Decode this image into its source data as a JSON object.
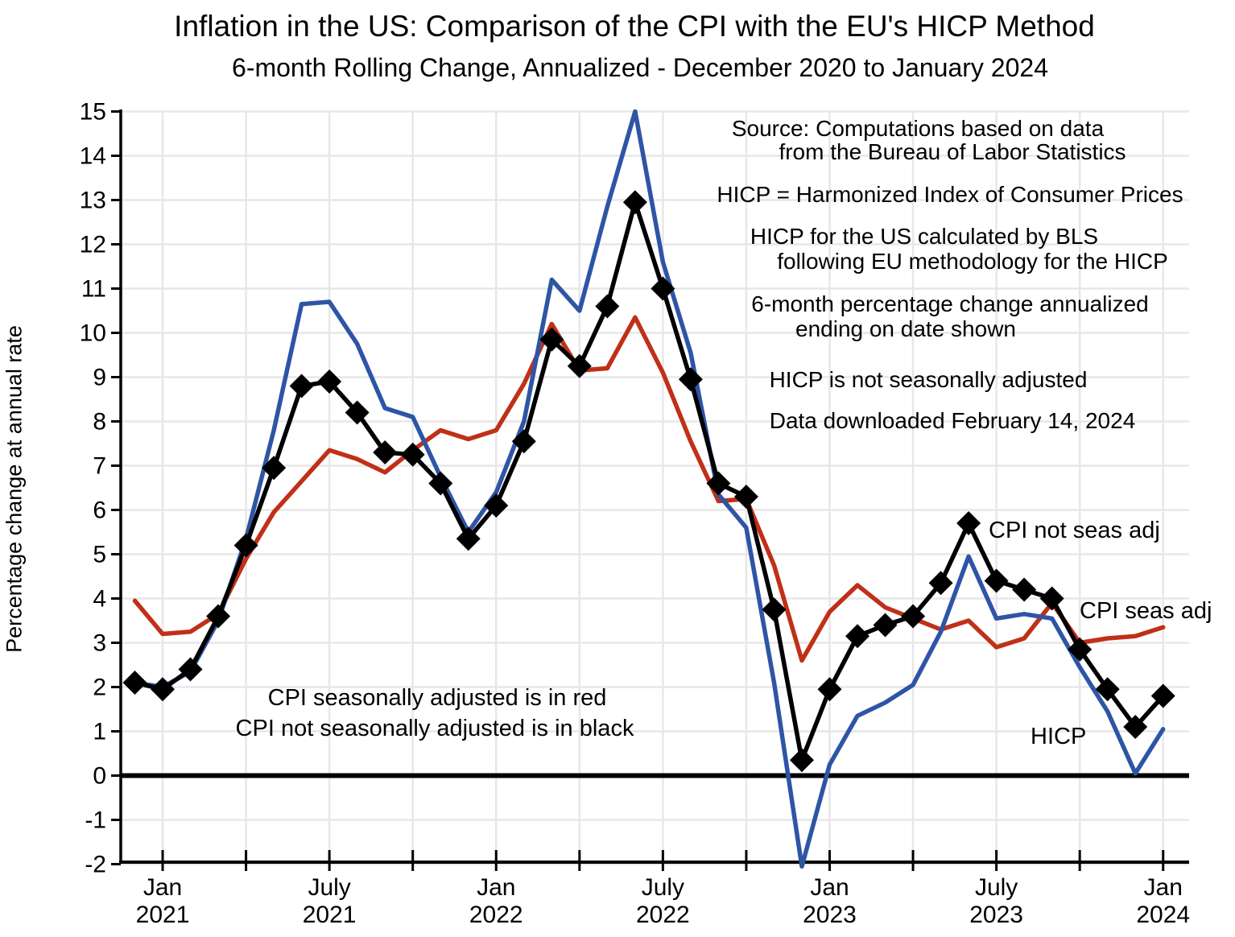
{
  "page": {
    "title": "Inflation in the US:  Comparison of the CPI with the EU's HICP Method",
    "subtitle": "6-month Rolling Change, Annualized - December 2020 to January 2024",
    "y_axis_label": "Percentage change at annual rate"
  },
  "annotations": {
    "lines": [
      "Source:  Computations based on data",
      "from the Bureau of Labor Statistics",
      "HICP = Harmonized Index of Consumer Prices",
      "HICP for the US calculated by BLS",
      "following EU methodology for the HICP",
      "6-month percentage change annualized",
      "ending on date shown",
      "HICP is not seasonally adjusted",
      "Data downloaded February 14, 2024"
    ]
  },
  "legend": {
    "line1": "CPI seasonally adjusted is in red",
    "line2": "CPI not seasonally adjusted is in black"
  },
  "series_labels": {
    "cpi_nsa": "CPI not seas adj",
    "cpi_sa": "CPI seas adj",
    "hicp": "HICP"
  },
  "chart_data": {
    "type": "line",
    "title": "Inflation in the US:  Comparison of the CPI with the EU's HICP Method",
    "subtitle": "6-month Rolling Change, Annualized - December 2020 to January 2024",
    "ylabel": "Percentage change at annual rate",
    "ylim": [
      -2,
      15
    ],
    "y_tick_step": 1,
    "grid": true,
    "zero_line": true,
    "x": [
      "Dec 2020",
      "Jan 2021",
      "Feb 2021",
      "Mar 2021",
      "Apr 2021",
      "May 2021",
      "Jun 2021",
      "Jul 2021",
      "Aug 2021",
      "Sep 2021",
      "Oct 2021",
      "Nov 2021",
      "Dec 2021",
      "Jan 2022",
      "Feb 2022",
      "Mar 2022",
      "Apr 2022",
      "May 2022",
      "Jun 2022",
      "Jul 2022",
      "Aug 2022",
      "Sep 2022",
      "Oct 2022",
      "Nov 2022",
      "Dec 2022",
      "Jan 2023",
      "Feb 2023",
      "Mar 2023",
      "Apr 2023",
      "May 2023",
      "Jun 2023",
      "Jul 2023",
      "Aug 2023",
      "Sep 2023",
      "Oct 2023",
      "Nov 2023",
      "Dec 2023",
      "Jan 2024"
    ],
    "x_tick_interval_months": 3,
    "x_labeled_ticks": [
      {
        "index": 1,
        "line1": "Jan",
        "line2": "2021"
      },
      {
        "index": 7,
        "line1": "July",
        "line2": "2021"
      },
      {
        "index": 13,
        "line1": "Jan",
        "line2": "2022"
      },
      {
        "index": 19,
        "line1": "July",
        "line2": "2022"
      },
      {
        "index": 25,
        "line1": "Jan",
        "line2": "2023"
      },
      {
        "index": 31,
        "line1": "July",
        "line2": "2023"
      },
      {
        "index": 37,
        "line1": "Jan",
        "line2": "2024"
      }
    ],
    "colors": {
      "cpi_nsa": "#000000",
      "cpi_sa": "#c03018",
      "hicp": "#2e55a5",
      "grid": "#e7e7e7"
    },
    "series": [
      {
        "name": "CPI seas adj",
        "key": "cpi_sa",
        "color": "#c03018",
        "marker": "none",
        "values": [
          3.95,
          3.2,
          3.25,
          3.65,
          4.9,
          5.95,
          6.65,
          7.35,
          7.15,
          6.85,
          7.35,
          7.8,
          7.6,
          7.8,
          8.85,
          10.2,
          9.15,
          9.2,
          10.35,
          9.1,
          7.55,
          6.2,
          6.25,
          4.75,
          2.6,
          3.7,
          4.3,
          3.8,
          3.55,
          3.3,
          3.5,
          2.9,
          3.1,
          3.9,
          3.0,
          3.1,
          3.15,
          3.35
        ]
      },
      {
        "name": "HICP",
        "key": "hicp",
        "color": "#2e55a5",
        "marker": "none",
        "values": [
          2.1,
          2.0,
          2.35,
          3.5,
          5.35,
          7.8,
          10.65,
          10.7,
          9.75,
          8.3,
          8.1,
          6.75,
          5.5,
          6.4,
          8.0,
          11.2,
          10.5,
          12.85,
          15.0,
          11.6,
          9.55,
          6.35,
          5.6,
          2.1,
          -2.05,
          0.25,
          1.35,
          1.65,
          2.05,
          3.25,
          4.95,
          3.55,
          3.65,
          3.55,
          2.45,
          1.45,
          0.05,
          1.05
        ]
      },
      {
        "name": "CPI not seas adj",
        "key": "cpi_nsa",
        "color": "#000000",
        "marker": "diamond",
        "values": [
          2.1,
          1.95,
          2.4,
          3.6,
          5.2,
          6.95,
          8.8,
          8.9,
          8.2,
          7.3,
          7.25,
          6.6,
          5.35,
          6.1,
          7.55,
          9.85,
          9.25,
          10.6,
          12.95,
          11.0,
          8.95,
          6.6,
          6.3,
          3.75,
          0.35,
          1.95,
          3.15,
          3.4,
          3.6,
          4.35,
          5.7,
          4.4,
          4.2,
          4.0,
          2.85,
          1.95,
          1.1,
          1.8
        ]
      }
    ],
    "legend_position": "inline-labels"
  }
}
